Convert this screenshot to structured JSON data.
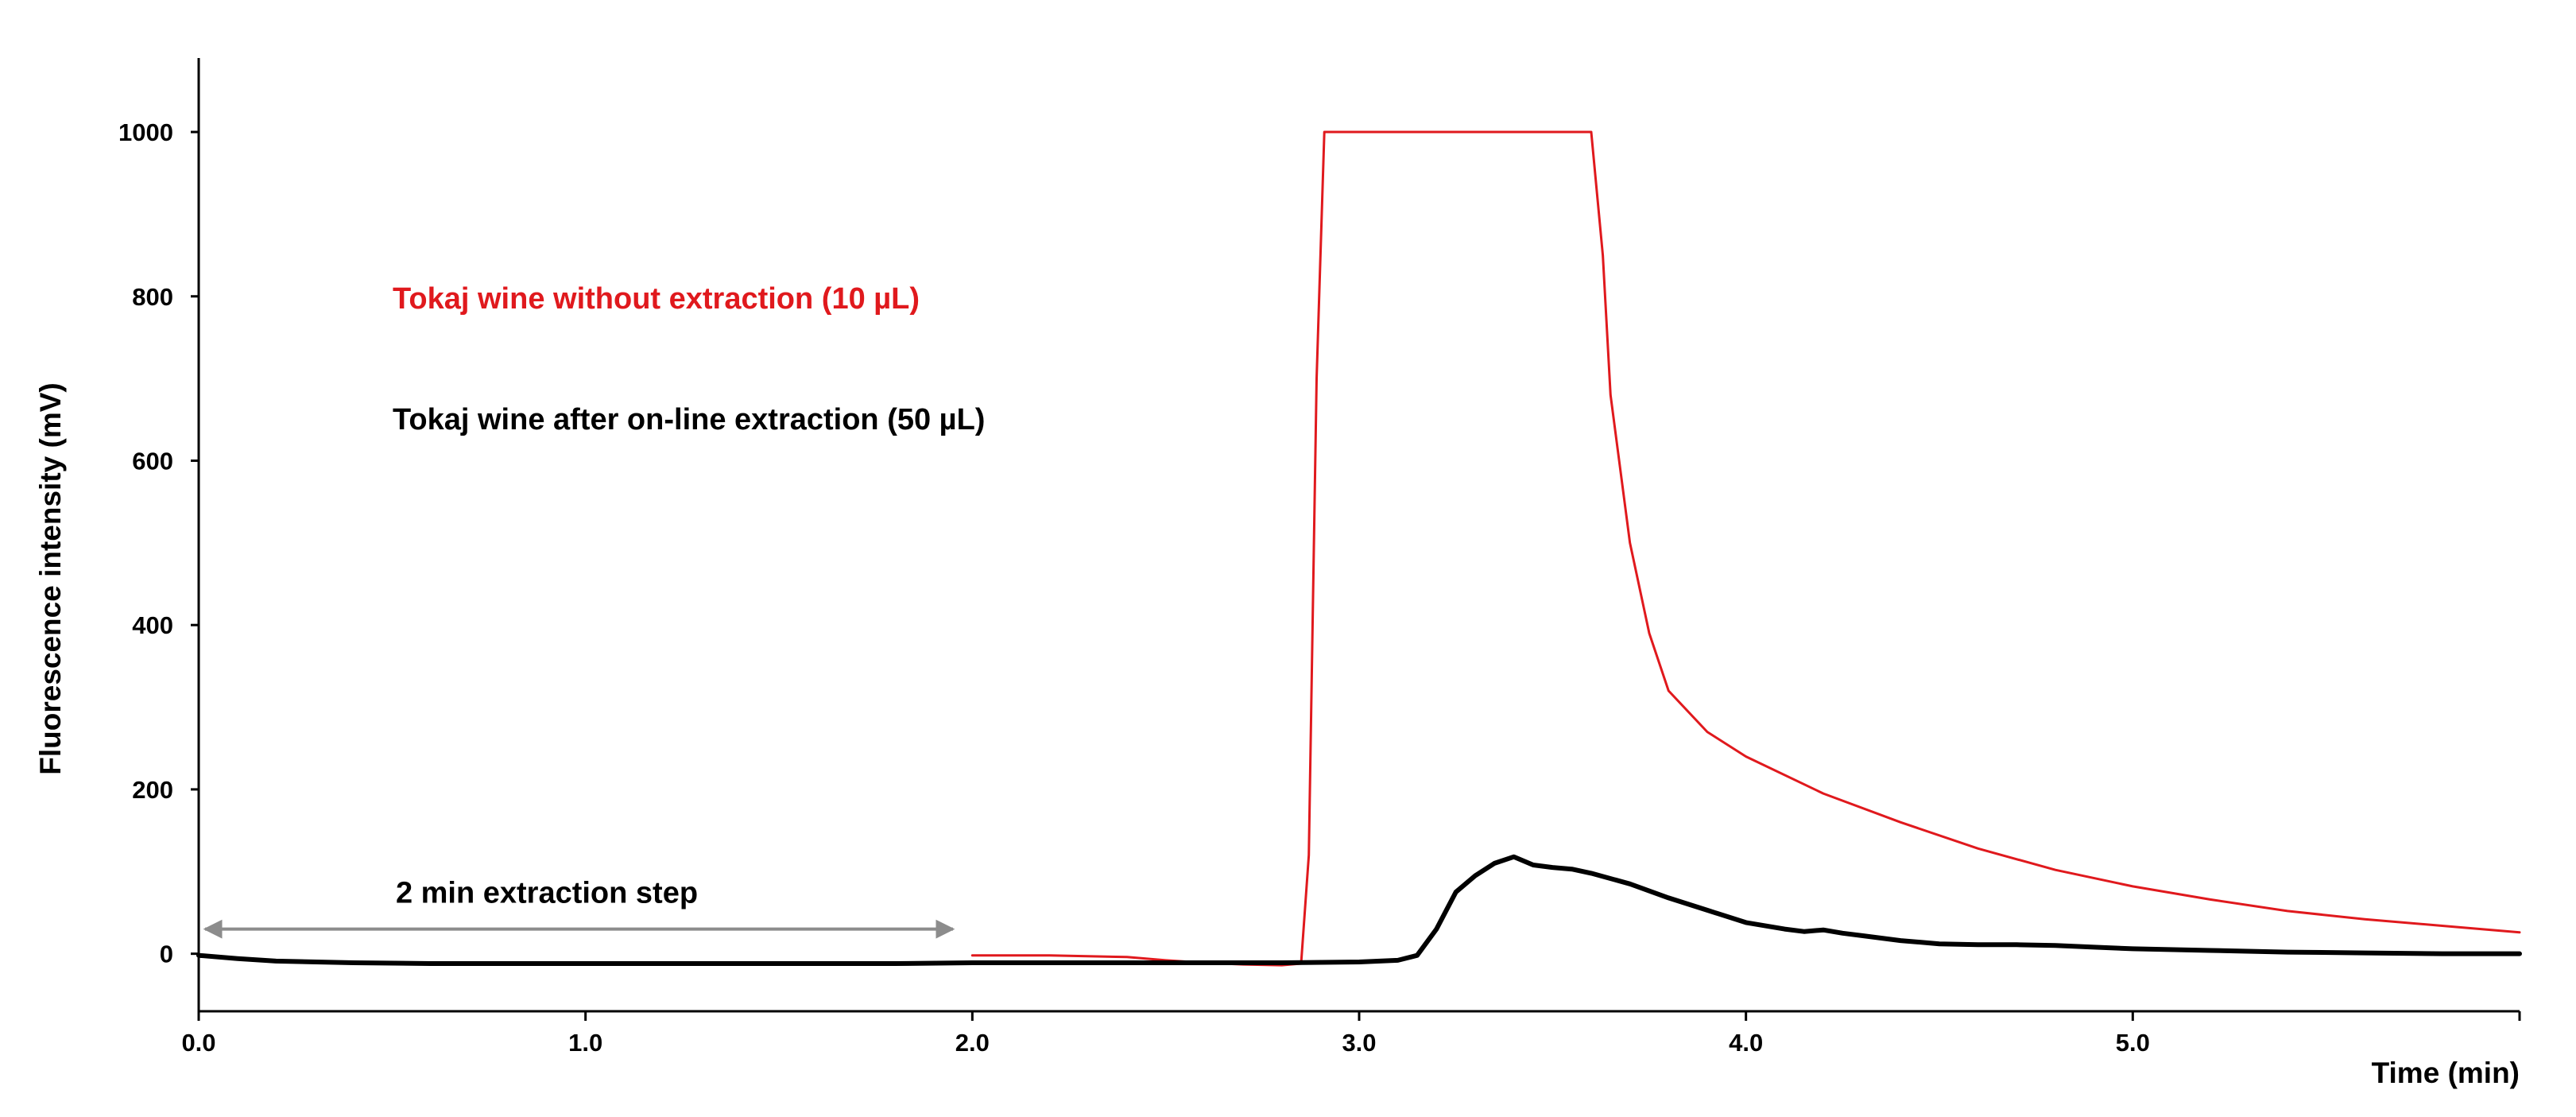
{
  "chart_data": {
    "type": "line",
    "title": "",
    "xlabel": "Time (min)",
    "ylabel": "Fluorescence intensity (mV)",
    "xlim": [
      0,
      6.0
    ],
    "ylim": [
      -70,
      1090
    ],
    "grid": false,
    "x_ticks": [
      0.0,
      1.0,
      2.0,
      3.0,
      4.0,
      5.0,
      6.0
    ],
    "x_tick_labels": [
      "0.0",
      "1.0",
      "2.0",
      "3.0",
      "4.0",
      "5.0",
      ""
    ],
    "y_ticks": [
      0,
      200,
      400,
      600,
      800,
      1000
    ],
    "y_tick_labels": [
      "0",
      "200",
      "400",
      "600",
      "800",
      "1000"
    ],
    "legend_position": "upper-left",
    "series": [
      {
        "name": "Tokaj wine without extraction (10 µL)",
        "color": "#e0191d",
        "x": [
          2.0,
          2.2,
          2.4,
          2.5,
          2.6,
          2.7,
          2.8,
          2.85,
          2.87,
          2.89,
          2.91,
          3.0,
          3.3,
          3.55,
          3.6,
          3.63,
          3.65,
          3.7,
          3.75,
          3.8,
          3.9,
          4.0,
          4.2,
          4.4,
          4.6,
          4.8,
          5.0,
          5.2,
          5.4,
          5.6,
          5.8,
          6.0
        ],
        "y": [
          -2,
          -2,
          -4,
          -8,
          -11,
          -13,
          -14,
          -12,
          120,
          700,
          1000,
          1000,
          1000,
          1000,
          1000,
          850,
          680,
          500,
          390,
          320,
          270,
          240,
          195,
          160,
          128,
          102,
          82,
          66,
          52,
          42,
          34,
          26
        ]
      },
      {
        "name": "Tokaj wine after on-line extraction (50 µL)",
        "color": "#000000",
        "x": [
          0.0,
          0.1,
          0.2,
          0.4,
          0.6,
          0.8,
          1.0,
          1.2,
          1.4,
          1.6,
          1.8,
          2.0,
          2.2,
          2.4,
          2.6,
          2.8,
          3.0,
          3.1,
          3.15,
          3.2,
          3.25,
          3.3,
          3.35,
          3.4,
          3.45,
          3.5,
          3.55,
          3.6,
          3.7,
          3.8,
          3.9,
          4.0,
          4.1,
          4.15,
          4.2,
          4.25,
          4.3,
          4.4,
          4.5,
          4.6,
          4.7,
          4.8,
          4.9,
          5.0,
          5.2,
          5.4,
          5.6,
          5.8,
          6.0
        ],
        "y": [
          -2,
          -6,
          -9,
          -11,
          -12,
          -12,
          -12,
          -12,
          -12,
          -12,
          -12,
          -11,
          -11,
          -11,
          -11,
          -11,
          -10,
          -8,
          -2,
          30,
          75,
          95,
          110,
          118,
          108,
          105,
          103,
          98,
          85,
          68,
          53,
          38,
          30,
          27,
          29,
          25,
          22,
          16,
          12,
          11,
          11,
          10,
          8,
          6,
          4,
          2,
          1,
          0,
          0
        ]
      }
    ],
    "annotations": [
      {
        "type": "double-arrow",
        "x_start": 0.0,
        "x_end": 1.95,
        "y": 30,
        "color": "#8c8c8c"
      },
      {
        "type": "text",
        "text": "2 min extraction step",
        "x": 0.9,
        "y": 62
      }
    ]
  }
}
